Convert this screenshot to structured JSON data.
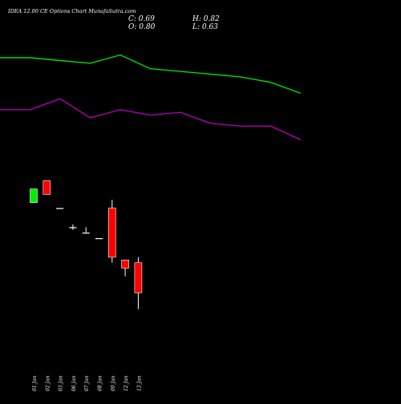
{
  "header": {
    "title": "IDEA 12.00  CE Options  Chart MunafaSutra.com",
    "close": "C: 0.69",
    "high": "H: 0.82",
    "open": "O: 0.80",
    "low": "L: 0.63"
  },
  "chart_data": {
    "type": "candlestick",
    "title": "IDEA 12.00  CE Options  Chart MunafaSutra.com",
    "categories": [
      "01 Jan",
      "02 Jan",
      "03 Jan",
      "06 Jan",
      "07 Jan",
      "08 Jan",
      "09 Jan",
      "12 Jan",
      "13 Jan"
    ],
    "candles": [
      {
        "open": 1.02,
        "high": 1.07,
        "low": 1.02,
        "close": 1.07,
        "color": "up"
      },
      {
        "open": 1.1,
        "high": 1.1,
        "low": 1.05,
        "close": 1.05,
        "color": "down"
      },
      {
        "open": 1.0,
        "high": 1.0,
        "low": 1.0,
        "close": 1.0,
        "color": "flat"
      },
      {
        "open": 0.93,
        "high": 0.94,
        "low": 0.92,
        "close": 0.93,
        "color": "flat"
      },
      {
        "open": 0.91,
        "high": 0.93,
        "low": 0.91,
        "close": 0.91,
        "color": "flat"
      },
      {
        "open": 0.89,
        "high": 0.89,
        "low": 0.89,
        "close": 0.89,
        "color": "flat"
      },
      {
        "open": 1.0,
        "high": 1.03,
        "low": 0.8,
        "close": 0.82,
        "color": "down"
      },
      {
        "open": 0.81,
        "high": 0.81,
        "low": 0.75,
        "close": 0.78,
        "color": "down"
      },
      {
        "open": 0.8,
        "high": 0.82,
        "low": 0.63,
        "close": 0.69,
        "color": "down"
      }
    ],
    "overlays": [
      {
        "color": "#00dd00",
        "values": [
          1.55,
          1.55,
          1.54,
          1.53,
          1.56,
          1.51,
          1.5,
          1.49,
          1.48,
          1.46,
          1.42
        ]
      },
      {
        "color": "#b000b0",
        "values": [
          1.36,
          1.36,
          1.4,
          1.33,
          1.36,
          1.34,
          1.35,
          1.31,
          1.3,
          1.3,
          1.25
        ]
      }
    ],
    "colors": {
      "up": "#00ee00",
      "down": "#ff0000",
      "flat": "#ffffff",
      "wick": "#ffffff",
      "background": "#000000"
    }
  }
}
